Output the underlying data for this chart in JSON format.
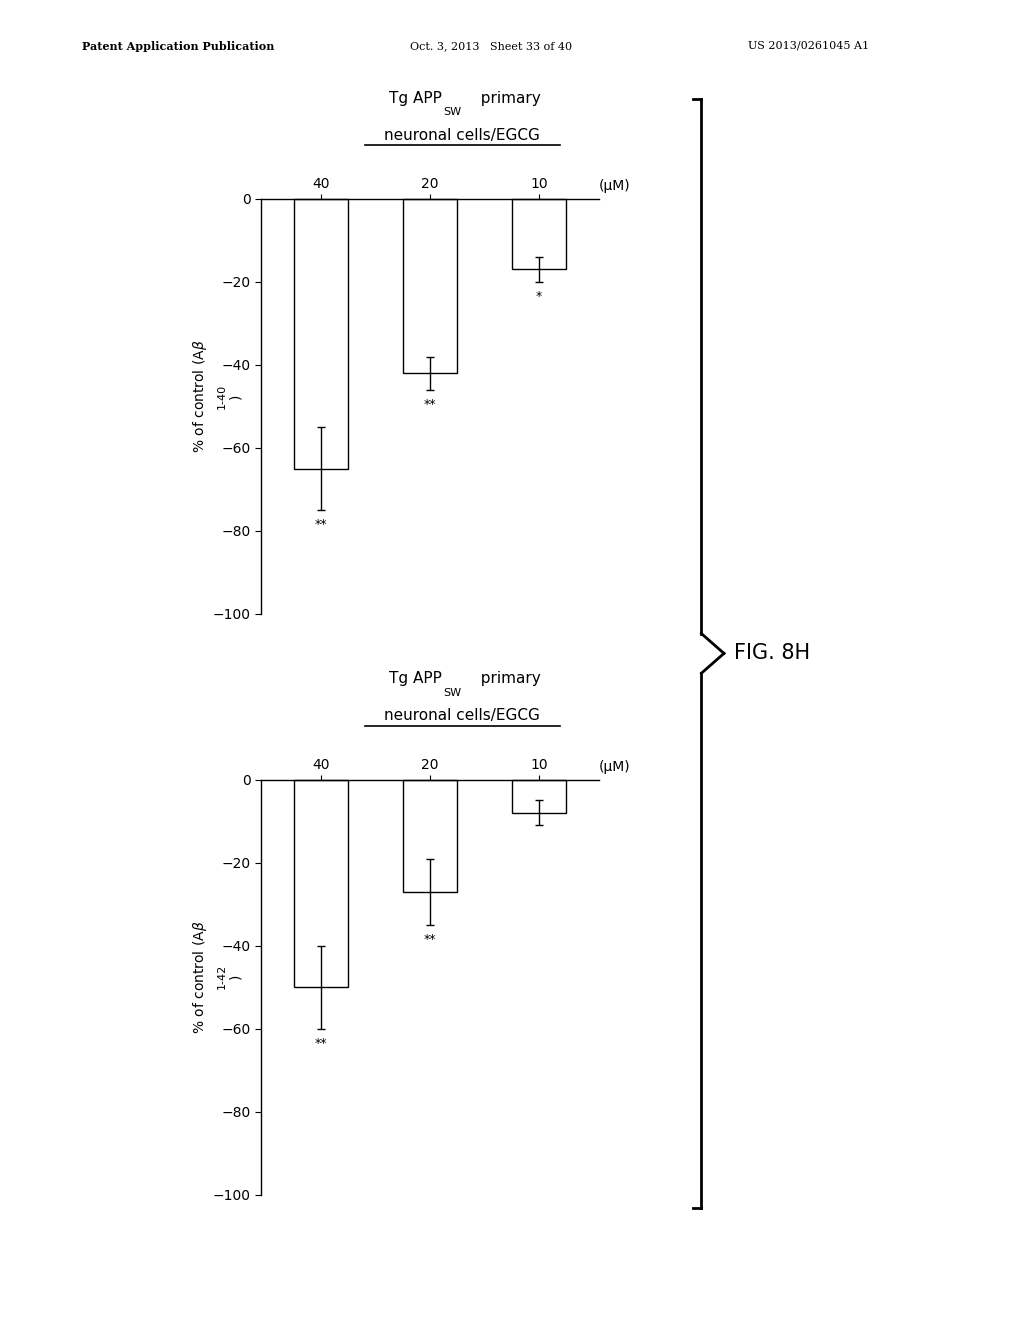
{
  "chart1": {
    "categories": [
      "40",
      "20",
      "10"
    ],
    "unit_label": "(μM)",
    "bar_values": [
      -65,
      -42,
      -17
    ],
    "bar_errors": [
      10,
      4,
      3
    ],
    "sig_labels": [
      "**",
      "**",
      "*"
    ],
    "ylabel_main": "% of control (Aβ",
    "ylabel_sub": "1-40",
    "ylim": [
      -100,
      5
    ],
    "yticks": [
      0,
      -20,
      -40,
      -60,
      -80,
      -100
    ]
  },
  "chart2": {
    "categories": [
      "40",
      "20",
      "10"
    ],
    "unit_label": "(μM)",
    "bar_values": [
      -50,
      -27,
      -8
    ],
    "bar_errors": [
      10,
      8,
      3
    ],
    "sig_labels": [
      "**",
      "**",
      ""
    ],
    "ylabel_main": "% of control (Aβ",
    "ylabel_sub": "1-42",
    "ylim": [
      -100,
      5
    ],
    "yticks": [
      0,
      -20,
      -40,
      -60,
      -80,
      -100
    ]
  },
  "header_left": "Patent Application Publication",
  "header_mid": "Oct. 3, 2013   Sheet 33 of 40",
  "header_right": "US 2013/0261045 A1",
  "fig_label": "FIG. 8H",
  "background_color": "#ffffff",
  "bar_color": "#ffffff",
  "bar_edgecolor": "#000000",
  "bar_width": 0.5,
  "fig_width": 10.24,
  "fig_height": 13.2
}
